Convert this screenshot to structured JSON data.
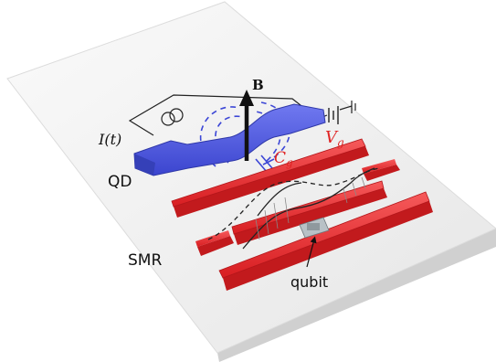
{
  "labels": {
    "qd": "QD",
    "smr": "SMR",
    "qubit": "qubit",
    "field": "B",
    "current": "I(t)",
    "gate_voltage_sym": "V",
    "gate_voltage_sub": "g",
    "gate_cap_sym": "C",
    "gate_cap_sub": "g"
  },
  "colors": {
    "plate": "#f1f1f1",
    "plate_shadow": "#c9c9c9",
    "quantum_dot": "#4a55d8",
    "quantum_dot_top": "#6b74ee",
    "electrode": "#e8272a",
    "electrode_top": "#f44a4c",
    "gate_label": "#e02424",
    "capacitor": "#3b46d6",
    "qubit_chip": "#b8c1c6",
    "circuit": "#222222"
  },
  "icons": [
    "current-source-icon",
    "battery-icon",
    "ground-icon",
    "capacitor-icon",
    "arrow-icon"
  ]
}
